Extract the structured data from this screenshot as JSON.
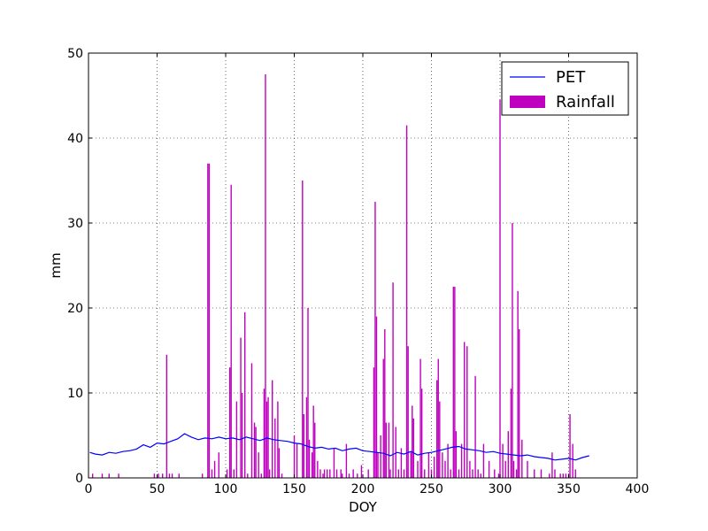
{
  "chart_data": {
    "type": "bar+line",
    "xlabel": "DOY",
    "ylabel": "mm",
    "xlim": [
      0,
      400
    ],
    "ylim": [
      0,
      50
    ],
    "xticks": [
      0,
      50,
      100,
      150,
      200,
      250,
      300,
      350,
      400
    ],
    "yticks": [
      0,
      10,
      20,
      30,
      40,
      50
    ],
    "grid": true,
    "legend_position": "top-right",
    "series": [
      {
        "name": "PET",
        "type": "line",
        "color": "#0000ff",
        "x": [
          1,
          5,
          10,
          15,
          20,
          25,
          30,
          35,
          40,
          45,
          50,
          55,
          60,
          65,
          70,
          75,
          80,
          85,
          90,
          95,
          100,
          105,
          110,
          115,
          120,
          125,
          130,
          135,
          140,
          145,
          150,
          155,
          160,
          165,
          170,
          175,
          180,
          185,
          190,
          195,
          200,
          205,
          210,
          215,
          220,
          225,
          230,
          235,
          240,
          245,
          250,
          255,
          260,
          265,
          270,
          275,
          280,
          285,
          290,
          295,
          300,
          305,
          310,
          315,
          320,
          325,
          330,
          335,
          340,
          345,
          350,
          355,
          360,
          365
        ],
        "y": [
          3.0,
          2.8,
          2.7,
          3.0,
          2.9,
          3.1,
          3.2,
          3.4,
          3.9,
          3.6,
          4.1,
          4.0,
          4.3,
          4.6,
          5.2,
          4.8,
          4.5,
          4.7,
          4.6,
          4.8,
          4.6,
          4.7,
          4.5,
          4.8,
          4.6,
          4.4,
          4.7,
          4.5,
          4.4,
          4.3,
          4.1,
          4.0,
          3.7,
          3.5,
          3.6,
          3.4,
          3.5,
          3.2,
          3.4,
          3.5,
          3.2,
          3.1,
          3.0,
          2.9,
          2.6,
          3.0,
          2.8,
          3.1,
          2.7,
          2.9,
          3.0,
          3.2,
          3.4,
          3.6,
          3.7,
          3.4,
          3.3,
          3.2,
          3.0,
          3.1,
          2.9,
          2.8,
          2.7,
          2.6,
          2.7,
          2.5,
          2.4,
          2.3,
          2.1,
          2.2,
          2.3,
          2.1,
          2.4,
          2.6
        ]
      },
      {
        "name": "Rainfall",
        "type": "bar",
        "color": "#bf00bf",
        "x": [
          3,
          10,
          15,
          22,
          48,
          51,
          54,
          57,
          59,
          61,
          66,
          83,
          87,
          88,
          90,
          92,
          95,
          101,
          103,
          104,
          106,
          108,
          111,
          112,
          114,
          116,
          119,
          121,
          122,
          124,
          126,
          128,
          129,
          130,
          131,
          132,
          134,
          136,
          138,
          139,
          141,
          150,
          152,
          156,
          157,
          159,
          160,
          161,
          163,
          164,
          165,
          167,
          169,
          171,
          172,
          174,
          176,
          179,
          181,
          184,
          185,
          188,
          190,
          193,
          196,
          199,
          204,
          208,
          209,
          210,
          211,
          213,
          215,
          216,
          217,
          219,
          220,
          222,
          224,
          226,
          228,
          230,
          232,
          233,
          235,
          236,
          237,
          240,
          242,
          243,
          245,
          248,
          250,
          252,
          254,
          255,
          256,
          258,
          260,
          262,
          264,
          266,
          267,
          268,
          270,
          272,
          274,
          276,
          278,
          280,
          282,
          284,
          286,
          288,
          292,
          296,
          299,
          300,
          302,
          304,
          306,
          308,
          309,
          310,
          312,
          313,
          314,
          316,
          320,
          325,
          330,
          336,
          338,
          340,
          344,
          346,
          348,
          350,
          351,
          353,
          355
        ],
        "y": [
          0.5,
          0.5,
          0.5,
          0.5,
          0.5,
          0.5,
          0.5,
          14.5,
          0.5,
          0.5,
          0.5,
          0.5,
          37,
          37,
          1,
          2,
          3,
          1,
          13,
          34.5,
          1,
          9,
          16.5,
          10,
          19.5,
          0.5,
          13.5,
          6.5,
          6,
          3,
          0.5,
          10.5,
          47.5,
          9,
          9.5,
          1,
          11.5,
          7,
          9,
          3.5,
          0.5,
          5,
          4,
          35,
          7.5,
          9.5,
          20,
          4.5,
          3,
          8.5,
          6.5,
          2,
          1,
          0.5,
          1,
          1,
          1,
          3.5,
          1,
          1,
          0.5,
          4,
          0.5,
          1,
          0.5,
          1.5,
          1,
          13,
          32.5,
          19,
          3,
          5,
          14,
          17.5,
          6.5,
          6.5,
          1,
          23,
          6,
          1,
          3.5,
          1,
          41.5,
          15.5,
          3,
          8.5,
          7,
          2,
          14,
          10.5,
          1,
          3,
          1,
          2.5,
          11.5,
          14,
          9,
          3,
          2,
          4,
          1,
          22.5,
          22.5,
          5.5,
          1,
          4,
          16,
          15.5,
          2,
          1,
          12,
          1,
          0.5,
          4,
          2,
          1,
          0.5,
          44.5,
          4,
          2,
          5.5,
          10.5,
          30,
          2,
          1,
          22,
          17.5,
          4.5,
          2,
          1,
          1,
          0.5,
          3,
          1,
          0.5,
          0.5,
          0.5,
          0.5,
          7.5,
          4,
          1
        ]
      }
    ]
  }
}
